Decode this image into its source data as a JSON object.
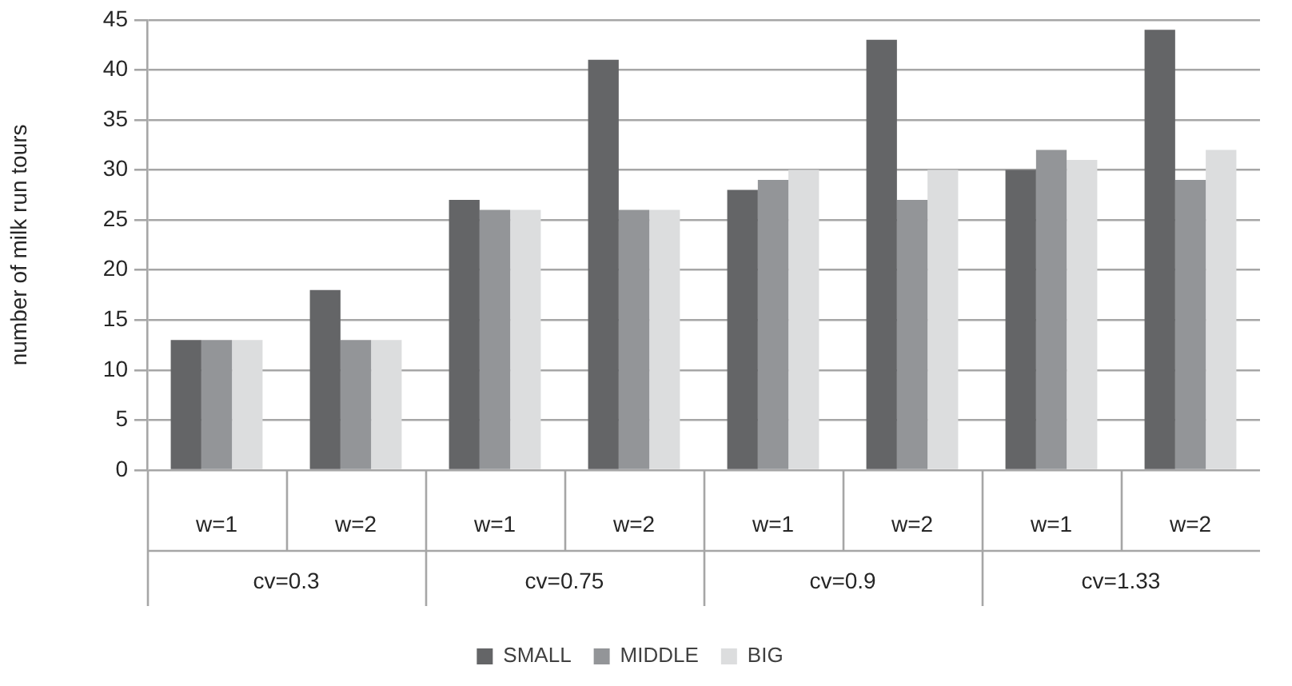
{
  "chart_data": {
    "type": "bar",
    "ylabel": "number of milk run tours",
    "categories": [
      "w=1",
      "w=2",
      "w=1",
      "w=2",
      "w=1",
      "w=2",
      "w=1",
      "w=2"
    ],
    "annotations": [
      "cv=0.3",
      "cv=0.75",
      "cv=0.9",
      "cv=1.33"
    ],
    "series": [
      {
        "name": "SMALL",
        "color": "#646567",
        "values": [
          13,
          18,
          27,
          41,
          28,
          43,
          30,
          44
        ]
      },
      {
        "name": "MIDDLE",
        "color": "#939598",
        "values": [
          13,
          13,
          26,
          26,
          29,
          27,
          32,
          29
        ]
      },
      {
        "name": "BIG",
        "color": "#dcddde",
        "values": [
          13,
          13,
          26,
          26,
          30,
          30,
          31,
          32
        ]
      }
    ],
    "ylim": [
      0,
      45
    ],
    "yticks": [
      0,
      5,
      10,
      15,
      20,
      25,
      30,
      35,
      40,
      45
    ],
    "grid": "y",
    "legend": "bottom"
  }
}
